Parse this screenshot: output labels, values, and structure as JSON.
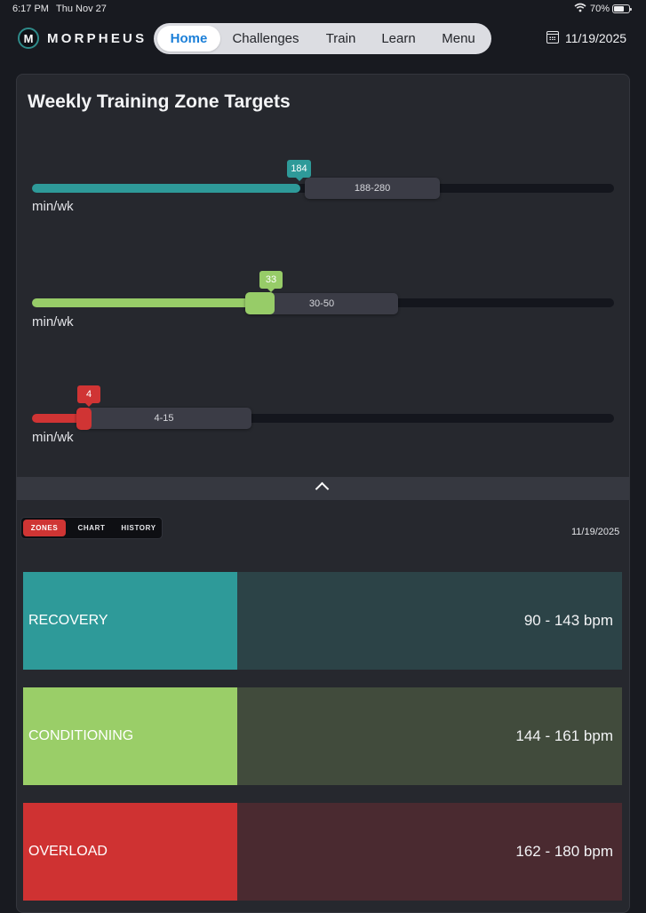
{
  "status_bar": {
    "time": "6:17 PM",
    "date": "Thu Nov 27",
    "battery": "70%",
    "battery_level": 0.7
  },
  "header": {
    "brand": "MORPHEUS",
    "logo_letter": "M",
    "nav": [
      {
        "label": "Home",
        "active": true
      },
      {
        "label": "Challenges",
        "active": false
      },
      {
        "label": "Train",
        "active": false
      },
      {
        "label": "Learn",
        "active": false
      },
      {
        "label": "Menu",
        "active": false
      }
    ],
    "date": "11/19/2025"
  },
  "targets": {
    "title": "Weekly Training Zone Targets",
    "sliders": [
      {
        "value": "184",
        "range": "188-280",
        "unit": "min/wk",
        "color": "#2e9a99"
      },
      {
        "value": "33",
        "range": "30-50",
        "unit": "min/wk",
        "color": "#97cc68"
      },
      {
        "value": "4",
        "range": "4-15",
        "unit": "min/wk",
        "color": "#d03434"
      }
    ]
  },
  "segmented": {
    "options": [
      "ZONES",
      "CHART",
      "HISTORY"
    ],
    "active": "ZONES",
    "date": "11/19/2025"
  },
  "zones": [
    {
      "name": "RECOVERY",
      "range": "90 - 143 bpm",
      "color": "#2e9a99",
      "bg": "#2c4347"
    },
    {
      "name": "CONDITIONING",
      "range": "144 - 161 bpm",
      "color": "#9ace68",
      "bg": "#414b3c"
    },
    {
      "name": "OVERLOAD",
      "range": "162 - 180 bpm",
      "color": "#cf3232",
      "bg": "#4a2a30"
    }
  ],
  "colors": {
    "accent_blue": "#1b7fd8",
    "card": "#26282e",
    "background": "#181a20"
  }
}
